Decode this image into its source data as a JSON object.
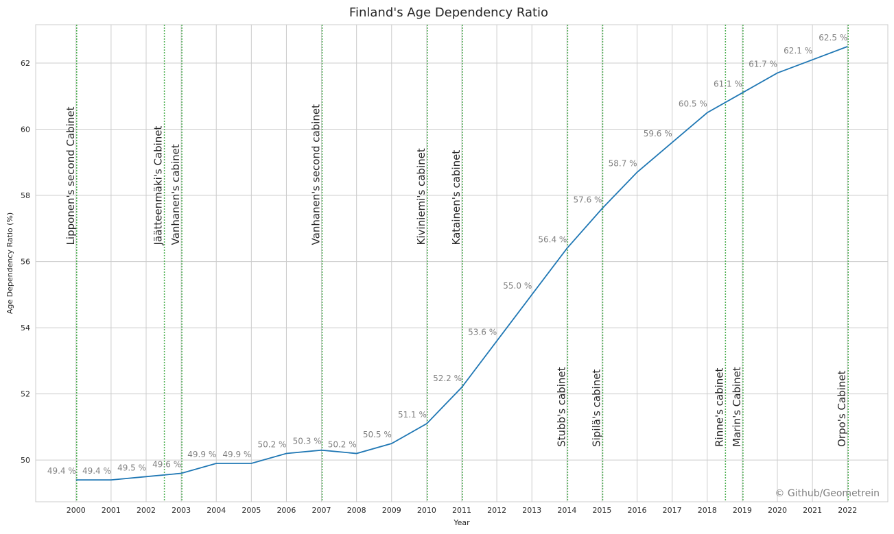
{
  "chart_data": {
    "type": "line",
    "title": "Finland's Age Dependency Ratio",
    "xlabel": "Year",
    "ylabel": "Age Dependency Ratio (%)",
    "x": [
      2000,
      2001,
      2002,
      2003,
      2004,
      2005,
      2006,
      2007,
      2008,
      2009,
      2010,
      2011,
      2012,
      2013,
      2014,
      2015,
      2016,
      2017,
      2018,
      2019,
      2020,
      2021,
      2022
    ],
    "x_tick_labels": [
      "2000",
      "2001",
      "2002",
      "2003",
      "2004",
      "2005",
      "2006",
      "2007",
      "2008",
      "2009",
      "2010",
      "2011",
      "2012",
      "2013",
      "2014",
      "2015",
      "2016",
      "2017",
      "2018",
      "2019",
      "2020",
      "2021",
      "2022"
    ],
    "y_ticks": [
      50,
      52,
      54,
      56,
      58,
      60,
      62
    ],
    "y_tick_labels": [
      "50",
      "52",
      "54",
      "56",
      "58",
      "60",
      "62"
    ],
    "xlim": [
      1998.85,
      2023.15
    ],
    "ylim": [
      48.74,
      63.16
    ],
    "grid": true,
    "series": [
      {
        "values": [
          49.4,
          49.4,
          49.5,
          49.6,
          49.9,
          49.9,
          50.2,
          50.3,
          50.2,
          50.5,
          51.1,
          52.2,
          53.6,
          55.0,
          56.4,
          57.6,
          58.7,
          59.6,
          60.5,
          61.1,
          61.7,
          62.1,
          62.5
        ],
        "color": "#1f77b4",
        "point_labels": [
          "49.4 %",
          "49.4 %",
          "49.5 %",
          "49.6 %",
          "49.9 %",
          "49.9 %",
          "50.2 %",
          "50.3 %",
          "50.2 %",
          "50.5 %",
          "51.1 %",
          "52.2 %",
          "53.6 %",
          "55.0 %",
          "56.4 %",
          "57.6 %",
          "58.7 %",
          "59.6 %",
          "60.5 %",
          "61.1 %",
          "61.7 %",
          "62.1 %",
          "62.5 %"
        ]
      }
    ],
    "annotations": [
      {
        "x": 2000.02,
        "label": "Lipponen's second Cabinet",
        "label_y": 56.5
      },
      {
        "x": 2002.52,
        "label": "Jäätteenmäki's Cabinet",
        "label_y": 56.5
      },
      {
        "x": 2003.02,
        "label": "Vanhanen's cabinet",
        "label_y": 56.5
      },
      {
        "x": 2007.02,
        "label": "Vanhanen's second cabinet",
        "label_y": 56.5
      },
      {
        "x": 2010.02,
        "label": "Kiviniemi's cabinet",
        "label_y": 56.5
      },
      {
        "x": 2011.02,
        "label": "Katainen's cabinet",
        "label_y": 56.5
      },
      {
        "x": 2014.02,
        "label": "Stubb's cabinet",
        "label_y": 50.4
      },
      {
        "x": 2015.02,
        "label": "Sipilä's cabinet",
        "label_y": 50.4
      },
      {
        "x": 2018.52,
        "label": "Rinne's cabinet",
        "label_y": 50.4
      },
      {
        "x": 2019.02,
        "label": "Marin's Cabinet",
        "label_y": 50.4
      },
      {
        "x": 2022.02,
        "label": "Orpo's Cabinet",
        "label_y": 50.4
      }
    ],
    "annotation_line_color": "#4caf50",
    "watermark": "© Github/Geometrein"
  }
}
